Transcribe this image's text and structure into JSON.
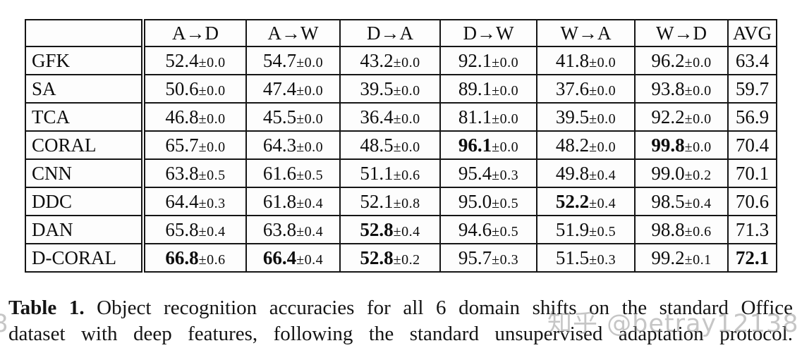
{
  "table": {
    "columns": [
      "",
      "A→D",
      "A→W",
      "D→A",
      "D→W",
      "W→A",
      "W→D",
      "AVG"
    ],
    "rows": [
      {
        "method": "GFK",
        "cells": [
          {
            "value": "52.4",
            "pm": "±0.0",
            "bold": false
          },
          {
            "value": "54.7",
            "pm": "±0.0",
            "bold": false
          },
          {
            "value": "43.2",
            "pm": "±0.0",
            "bold": false
          },
          {
            "value": "92.1",
            "pm": "±0.0",
            "bold": false
          },
          {
            "value": "41.8",
            "pm": "±0.0",
            "bold": false
          },
          {
            "value": "96.2",
            "pm": "±0.0",
            "bold": false
          },
          {
            "value": "63.4",
            "pm": "",
            "bold": false
          }
        ]
      },
      {
        "method": "SA",
        "cells": [
          {
            "value": "50.6",
            "pm": "±0.0",
            "bold": false
          },
          {
            "value": "47.4",
            "pm": "±0.0",
            "bold": false
          },
          {
            "value": "39.5",
            "pm": "±0.0",
            "bold": false
          },
          {
            "value": "89.1",
            "pm": "±0.0",
            "bold": false
          },
          {
            "value": "37.6",
            "pm": "±0.0",
            "bold": false
          },
          {
            "value": "93.8",
            "pm": "±0.0",
            "bold": false
          },
          {
            "value": "59.7",
            "pm": "",
            "bold": false
          }
        ]
      },
      {
        "method": "TCA",
        "cells": [
          {
            "value": "46.8",
            "pm": "±0.0",
            "bold": false
          },
          {
            "value": "45.5",
            "pm": "±0.0",
            "bold": false
          },
          {
            "value": "36.4",
            "pm": "±0.0",
            "bold": false
          },
          {
            "value": "81.1",
            "pm": "±0.0",
            "bold": false
          },
          {
            "value": "39.5",
            "pm": "±0.0",
            "bold": false
          },
          {
            "value": "92.2",
            "pm": "±0.0",
            "bold": false
          },
          {
            "value": "56.9",
            "pm": "",
            "bold": false
          }
        ]
      },
      {
        "method": "CORAL",
        "cells": [
          {
            "value": "65.7",
            "pm": "±0.0",
            "bold": false
          },
          {
            "value": "64.3",
            "pm": "±0.0",
            "bold": false
          },
          {
            "value": "48.5",
            "pm": "±0.0",
            "bold": false
          },
          {
            "value": "96.1",
            "pm": "±0.0",
            "bold": true
          },
          {
            "value": "48.2",
            "pm": "±0.0",
            "bold": false
          },
          {
            "value": "99.8",
            "pm": "±0.0",
            "bold": true
          },
          {
            "value": "70.4",
            "pm": "",
            "bold": false
          }
        ]
      },
      {
        "method": "CNN",
        "cells": [
          {
            "value": "63.8",
            "pm": "±0.5",
            "bold": false
          },
          {
            "value": "61.6",
            "pm": "±0.5",
            "bold": false
          },
          {
            "value": "51.1",
            "pm": "±0.6",
            "bold": false
          },
          {
            "value": "95.4",
            "pm": "±0.3",
            "bold": false
          },
          {
            "value": "49.8",
            "pm": "±0.4",
            "bold": false
          },
          {
            "value": "99.0",
            "pm": "±0.2",
            "bold": false
          },
          {
            "value": "70.1",
            "pm": "",
            "bold": false
          }
        ]
      },
      {
        "method": "DDC",
        "cells": [
          {
            "value": "64.4",
            "pm": "±0.3",
            "bold": false
          },
          {
            "value": "61.8",
            "pm": "±0.4",
            "bold": false
          },
          {
            "value": "52.1",
            "pm": "±0.8",
            "bold": false
          },
          {
            "value": "95.0",
            "pm": "±0.5",
            "bold": false
          },
          {
            "value": "52.2",
            "pm": "±0.4",
            "bold": true
          },
          {
            "value": "98.5",
            "pm": "±0.4",
            "bold": false
          },
          {
            "value": "70.6",
            "pm": "",
            "bold": false
          }
        ]
      },
      {
        "method": "DAN",
        "cells": [
          {
            "value": "65.8",
            "pm": "±0.4",
            "bold": false
          },
          {
            "value": "63.8",
            "pm": "±0.4",
            "bold": false
          },
          {
            "value": "52.8",
            "pm": "±0.4",
            "bold": true
          },
          {
            "value": "94.6",
            "pm": "±0.5",
            "bold": false
          },
          {
            "value": "51.9",
            "pm": "±0.5",
            "bold": false
          },
          {
            "value": "98.8",
            "pm": "±0.6",
            "bold": false
          },
          {
            "value": "71.3",
            "pm": "",
            "bold": false
          }
        ]
      },
      {
        "method": "D-CORAL",
        "cells": [
          {
            "value": "66.8",
            "pm": "±0.6",
            "bold": true
          },
          {
            "value": "66.4",
            "pm": "±0.4",
            "bold": true
          },
          {
            "value": "52.8",
            "pm": "±0.2",
            "bold": true
          },
          {
            "value": "95.7",
            "pm": "±0.3",
            "bold": false
          },
          {
            "value": "51.5",
            "pm": "±0.3",
            "bold": false
          },
          {
            "value": "99.2",
            "pm": "±0.1",
            "bold": false
          },
          {
            "value": "72.1",
            "pm": "",
            "bold": true
          }
        ]
      }
    ]
  },
  "caption": {
    "label": "Table 1.",
    "line1": "Object recognition accuracies for all 6 domain shifts on the standard Office",
    "line2": "dataset with deep features, following the standard unsupervised adaptation protocol."
  },
  "watermark": {
    "text": "知乎 @betray12138",
    "color": "#c6c6c6"
  }
}
